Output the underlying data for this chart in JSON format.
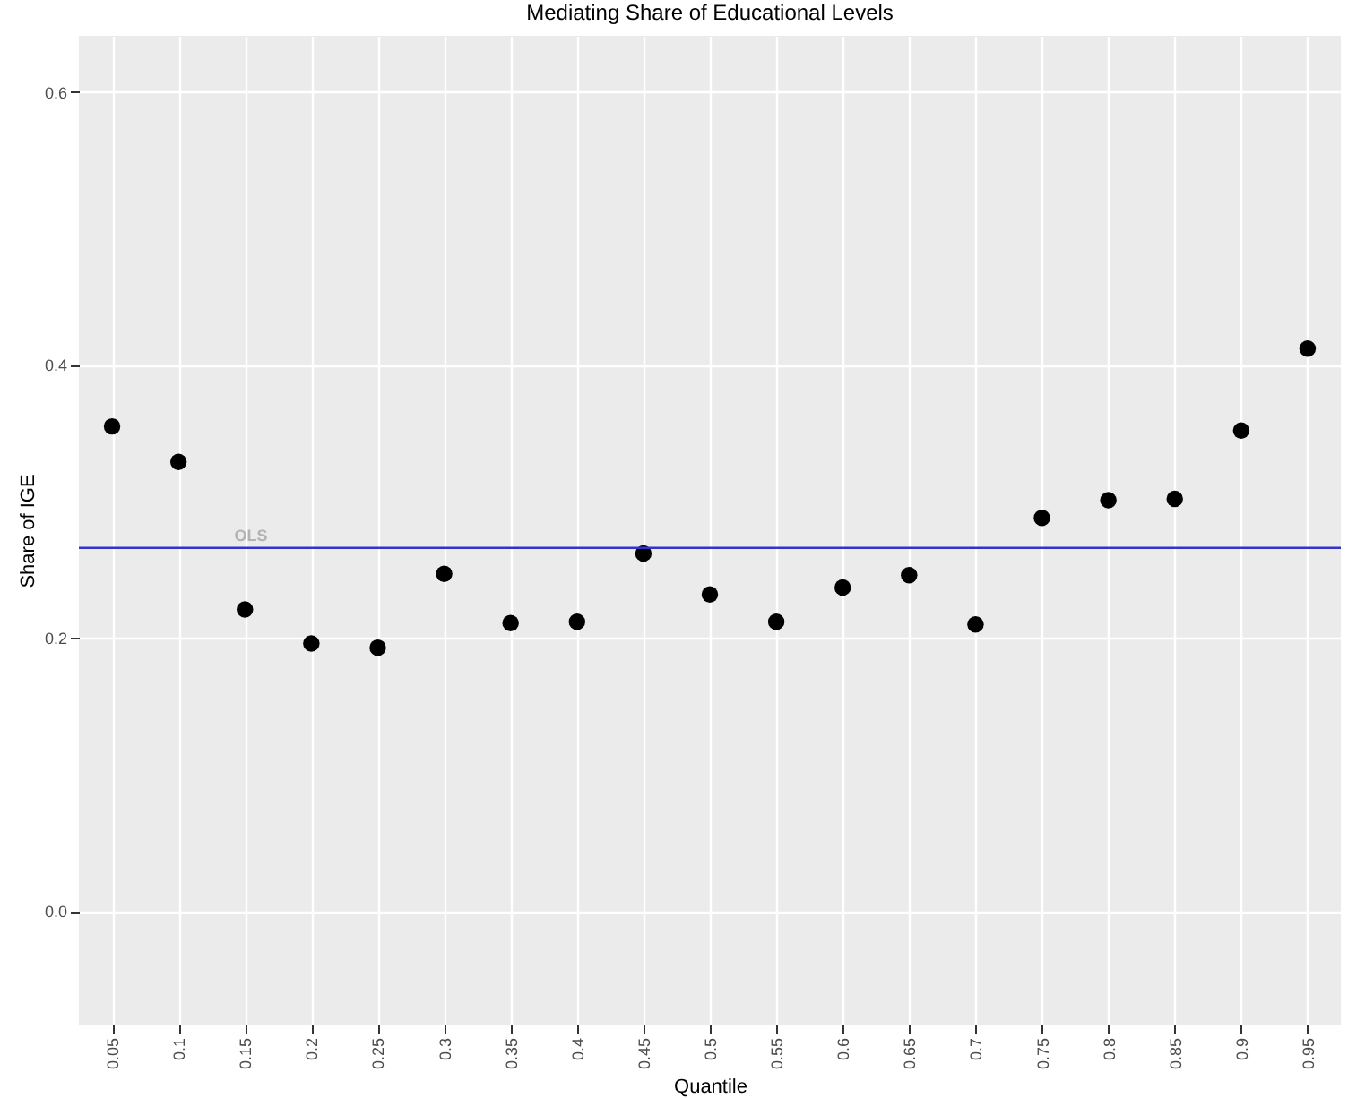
{
  "chart_data": {
    "type": "scatter",
    "title": "Mediating Share of Educational Levels",
    "xlabel": "Quantile",
    "ylabel": "Share of IGE",
    "categories": [
      "0.05",
      "0.1",
      "0.15",
      "0.2",
      "0.25",
      "0.3",
      "0.35",
      "0.4",
      "0.45",
      "0.5",
      "0.55",
      "0.6",
      "0.65",
      "0.7",
      "0.75",
      "0.8",
      "0.85",
      "0.9",
      "0.95"
    ],
    "series": [
      {
        "color": "#000000",
        "values": [
          0.355,
          0.329,
          0.221,
          0.196,
          0.193,
          0.247,
          0.211,
          0.212,
          0.262,
          0.232,
          0.212,
          0.237,
          0.246,
          0.21,
          0.288,
          0.301,
          0.302,
          0.352,
          0.412
        ]
      }
    ],
    "ylim": [
      -0.083,
      0.641
    ],
    "yticks": [
      {
        "value": 0,
        "label": "0.0"
      },
      0.2,
      0.4,
      0.6
    ],
    "grid": true,
    "marker": "circle",
    "ref_lines": [
      {
        "axis": "y",
        "value": 0.266,
        "label": "OLS",
        "color": "#3333cc"
      }
    ]
  }
}
